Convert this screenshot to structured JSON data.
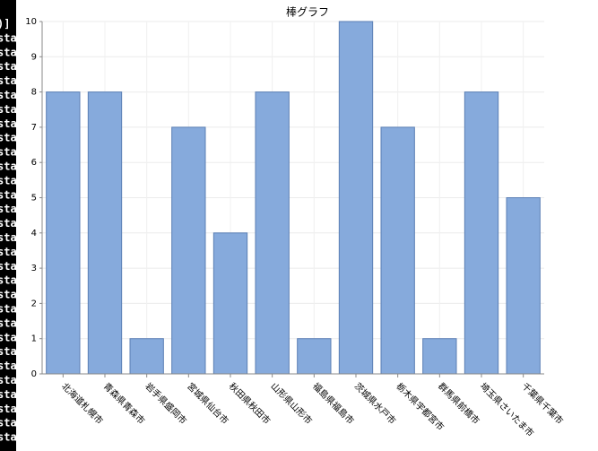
{
  "chart_data": {
    "type": "bar",
    "title": "棒グラフ",
    "categories": [
      "北海道札幌市",
      "青森県青森市",
      "岩手県盛岡市",
      "宮城県仙台市",
      "秋田県秋田市",
      "山形県山形市",
      "福島県福島市",
      "茨城県水戸市",
      "栃木県宇都宮市",
      "群馬県前橋市",
      "埼玉県さいたま市",
      "千葉県千葉市"
    ],
    "values": [
      8,
      8,
      1,
      7,
      4,
      8,
      1,
      10,
      7,
      1,
      8,
      5
    ],
    "color": "#86aadc",
    "ylim": [
      0,
      10
    ],
    "yticks": [
      0,
      1,
      2,
      3,
      4,
      5,
      6,
      7,
      8,
      9,
      10
    ],
    "grid": true
  },
  "terminal": {
    "lines": [
      ")]",
      "sta",
      "sta",
      "sta",
      "sta",
      "sta",
      "sta",
      "sta",
      "sta",
      "sta",
      "sta",
      "sta",
      "sta",
      "sta",
      "sta",
      "sta",
      "sta",
      "sta",
      "sta",
      "sta",
      "sta",
      "sta",
      "sta",
      "sta",
      "sta",
      "sta",
      "sta",
      "sta",
      "sta",
      "sta"
    ]
  }
}
